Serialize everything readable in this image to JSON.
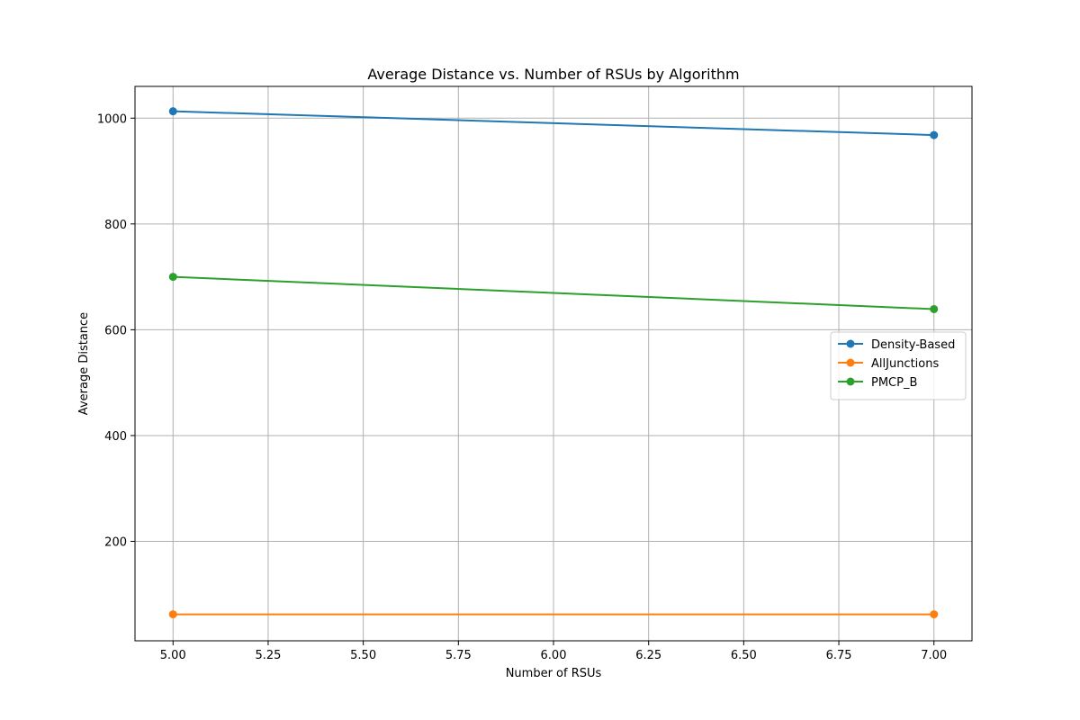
{
  "chart_data": {
    "type": "line",
    "title": "Average Distance vs. Number of RSUs by Algorithm",
    "xlabel": "Number of RSUs",
    "ylabel": "Average Distance",
    "xlim": [
      4.9,
      7.1
    ],
    "ylim": [
      12,
      1060
    ],
    "xticks": [
      5.0,
      5.25,
      5.5,
      5.75,
      6.0,
      6.25,
      6.5,
      6.75,
      7.0
    ],
    "xtick_labels": [
      "5.00",
      "5.25",
      "5.50",
      "5.75",
      "6.00",
      "6.25",
      "6.50",
      "6.75",
      "7.00"
    ],
    "yticks": [
      200,
      400,
      600,
      800,
      1000
    ],
    "ytick_labels": [
      "200",
      "400",
      "600",
      "800",
      "1000"
    ],
    "grid": true,
    "legend_position": "center-right",
    "series": [
      {
        "name": "Density-Based",
        "color": "#1f77b4",
        "x": [
          5,
          7
        ],
        "y": [
          1013,
          968
        ]
      },
      {
        "name": "AllJunctions",
        "color": "#ff7f0e",
        "x": [
          5,
          7
        ],
        "y": [
          62,
          62
        ]
      },
      {
        "name": "PMCP_B",
        "color": "#2ca02c",
        "x": [
          5,
          7
        ],
        "y": [
          700,
          639
        ]
      }
    ]
  }
}
